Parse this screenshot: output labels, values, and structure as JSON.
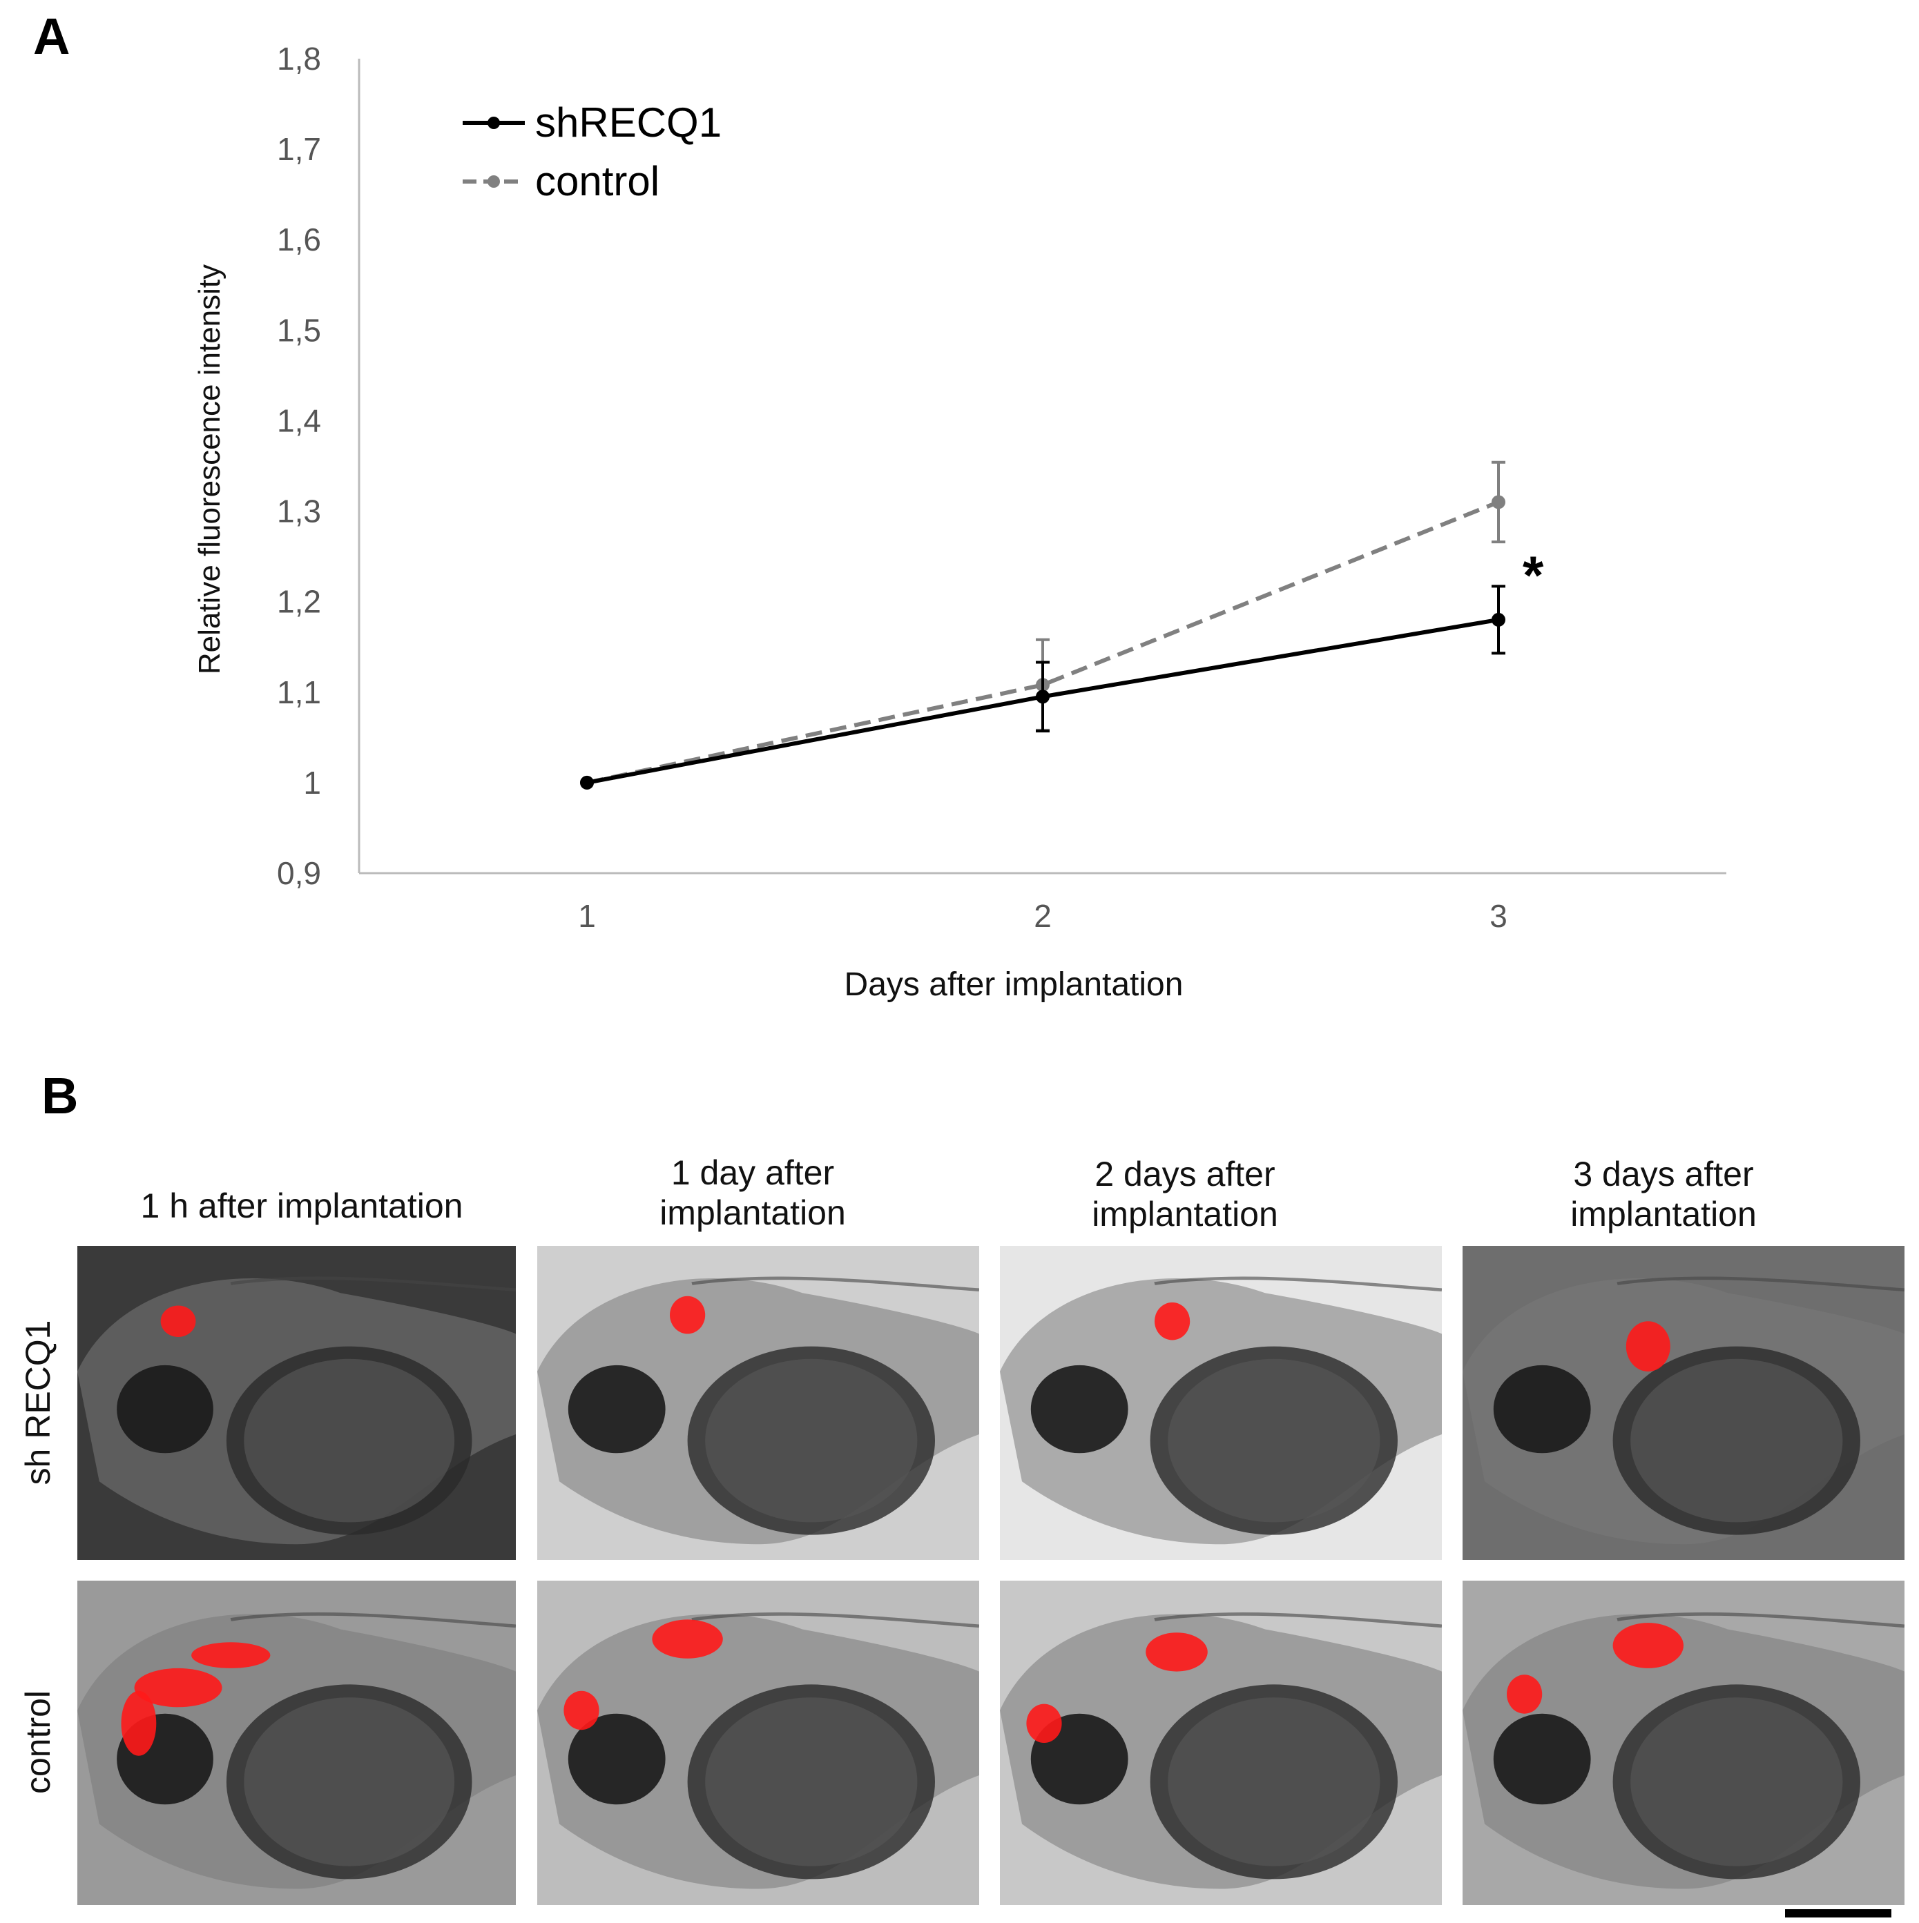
{
  "panel_a_label": "A",
  "panel_b_label": "B",
  "chart_data": {
    "type": "line",
    "title": "",
    "xlabel": "Days after implantation",
    "ylabel": "Relative fluorescence intensity",
    "x": [
      1,
      2,
      3
    ],
    "x_tick_labels": [
      "1",
      "2",
      "3"
    ],
    "y_tick_labels": [
      "0,9",
      "1",
      "1,1",
      "1,2",
      "1,3",
      "1,4",
      "1,5",
      "1,6",
      "1,7",
      "1,8"
    ],
    "ylim": [
      0.9,
      1.8
    ],
    "series": [
      {
        "name": "shRECQ1",
        "values": [
          1.0,
          1.095,
          1.18
        ],
        "errors": [
          0,
          0.038,
          0.037
        ],
        "color": "#000000",
        "style": "solid"
      },
      {
        "name": "control",
        "values": [
          1.0,
          1.108,
          1.31
        ],
        "errors": [
          0,
          0.05,
          0.044
        ],
        "color": "#808080",
        "style": "dashed"
      }
    ],
    "annotations": [
      {
        "text": "*",
        "x": 3
      }
    ],
    "legend": "top-left",
    "grid": false
  },
  "panel_b": {
    "columns": [
      "1 h after implantation",
      "1 day after\nimplantation",
      "2 days after\nimplantation",
      "3 days after\nimplantation"
    ],
    "rows": [
      "sh RECQ1",
      "control"
    ],
    "colors": {
      "fluorescence": "#ff1a1a",
      "background_dark": "#3a3a3a",
      "background_light": "#d9d9d9"
    }
  }
}
